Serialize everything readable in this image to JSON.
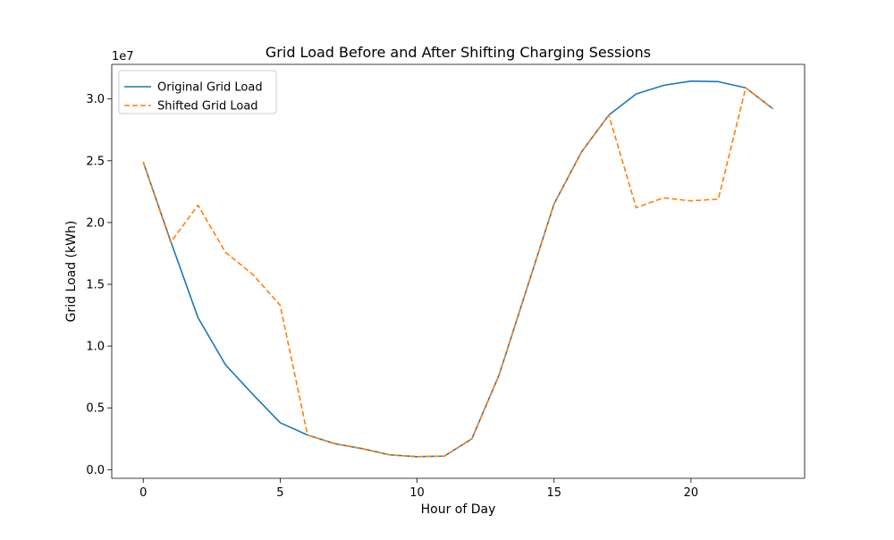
{
  "chart_data": {
    "type": "line",
    "title": "Grid Load Before and After Shifting Charging Sessions",
    "xlabel": "Hour of Day",
    "ylabel": "Grid Load (kWh)",
    "y_scale_label": "1e7",
    "xlim": [
      -1.15,
      24.15
    ],
    "ylim": [
      -0.07,
      3.28
    ],
    "y_multiplier": 10000000,
    "x_ticks": [
      0,
      5,
      10,
      15,
      20
    ],
    "x_tick_labels": [
      "0",
      "5",
      "10",
      "15",
      "20"
    ],
    "y_ticks": [
      0,
      0.5,
      1.0,
      1.5,
      2.0,
      2.5,
      3.0
    ],
    "y_tick_labels": [
      "0.0",
      "0.5",
      "1.0",
      "1.5",
      "2.0",
      "2.5",
      "3.0"
    ],
    "legend_position": "upper-left",
    "x": [
      0,
      1,
      2,
      3,
      4,
      5,
      6,
      7,
      8,
      9,
      10,
      11,
      12,
      13,
      14,
      15,
      16,
      17,
      18,
      19,
      20,
      21,
      22,
      23
    ],
    "series": [
      {
        "name": "Original Grid Load",
        "color": "#1f77b4",
        "dash": "solid",
        "values": [
          2.49,
          1.85,
          1.23,
          0.85,
          0.61,
          0.38,
          0.28,
          0.21,
          0.17,
          0.12,
          0.105,
          0.11,
          0.25,
          0.77,
          1.46,
          2.15,
          2.57,
          2.87,
          3.04,
          3.11,
          3.145,
          3.14,
          3.09,
          2.92
        ]
      },
      {
        "name": "Shifted Grid Load",
        "color": "#ff7f0e",
        "dash": "dashed",
        "values": [
          2.49,
          1.84,
          2.14,
          1.76,
          1.58,
          1.33,
          0.28,
          0.21,
          0.17,
          0.12,
          0.105,
          0.11,
          0.25,
          0.77,
          1.46,
          2.15,
          2.57,
          2.87,
          2.12,
          2.2,
          2.175,
          2.19,
          3.09,
          2.92
        ]
      }
    ]
  }
}
